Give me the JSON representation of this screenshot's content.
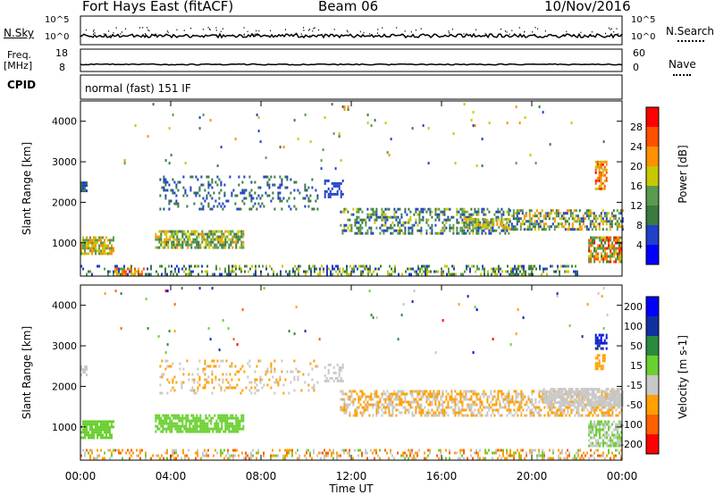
{
  "header": {
    "site": "Fort Hays East (fitACF)",
    "beam": "Beam 06",
    "date": "10/Nov/2016"
  },
  "nsky_panel": {
    "left_label": "N.Sky",
    "right_label": "N.Search",
    "top_tick": "10^5",
    "bottom_tick": "10^0"
  },
  "freq_panel": {
    "left_label_line1": "Freq.",
    "left_label_line2": "[MHz]",
    "left_ticks": [
      "18",
      "8"
    ],
    "right_label": "Nave",
    "right_ticks": [
      "60",
      "0"
    ]
  },
  "cpid": {
    "label": "CPID",
    "value": "normal (fast) 151 IF"
  },
  "colors": {
    "power": [
      "#0000ff",
      "#2040c8",
      "#3a7a40",
      "#5a9a50",
      "#c8c800",
      "#ff9000",
      "#ff5000",
      "#ff0000"
    ],
    "velocity": [
      "#ff0000",
      "#ff6000",
      "#ffa000",
      "#c8c8c8",
      "#6ad030",
      "#2a8a40",
      "#1030a0",
      "#0000ff"
    ]
  },
  "chart_data": [
    {
      "type": "heatmap",
      "name": "power",
      "xlabel": "",
      "ylabel": "Slant Range [km]",
      "xlim": [
        0,
        24
      ],
      "ylim": [
        180,
        4500
      ],
      "x_ticks": [],
      "y_ticks": [
        "1000",
        "2000",
        "3000",
        "4000"
      ],
      "colorbar": {
        "label": "Power [dB]",
        "range": [
          0,
          32
        ],
        "tick_values": [
          4,
          8,
          12,
          16,
          20,
          24,
          28
        ],
        "ticks": [
          "4",
          "8",
          "12",
          "16",
          "20",
          "24",
          "28"
        ]
      },
      "patches": [
        {
          "t0": 0.0,
          "t1": 0.3,
          "r0": 2250,
          "r1": 2500,
          "vmin": 4,
          "vmax": 12,
          "density": 0.9
        },
        {
          "t0": 0.0,
          "t1": 1.5,
          "r0": 700,
          "r1": 1100,
          "vmin": 12,
          "vmax": 24,
          "density": 0.75
        },
        {
          "t0": 0.0,
          "t1": 4.0,
          "r0": 190,
          "r1": 450,
          "vmin": 4,
          "vmax": 16,
          "density": 0.25
        },
        {
          "t0": 1.5,
          "t1": 2.8,
          "r0": 190,
          "r1": 350,
          "vmin": 16,
          "vmax": 28,
          "density": 0.5
        },
        {
          "t0": 3.3,
          "t1": 7.2,
          "r0": 850,
          "r1": 1250,
          "vmin": 8,
          "vmax": 22,
          "density": 0.7
        },
        {
          "t0": 3.5,
          "t1": 10.5,
          "r0": 1800,
          "r1": 2600,
          "vmin": 4,
          "vmax": 12,
          "density": 0.2
        },
        {
          "t0": 10.8,
          "t1": 11.6,
          "r0": 2100,
          "r1": 2550,
          "vmin": 4,
          "vmax": 8,
          "density": 0.45
        },
        {
          "t0": 11.5,
          "t1": 19.0,
          "r0": 1200,
          "r1": 1800,
          "vmin": 4,
          "vmax": 18,
          "density": 0.45
        },
        {
          "t0": 17.0,
          "t1": 19.0,
          "r0": 1350,
          "r1": 1600,
          "vmin": 12,
          "vmax": 22,
          "density": 0.5
        },
        {
          "t0": 19.0,
          "t1": 24.0,
          "r0": 1300,
          "r1": 1800,
          "vmin": 4,
          "vmax": 24,
          "density": 0.55
        },
        {
          "t0": 22.8,
          "t1": 23.3,
          "r0": 2300,
          "r1": 3000,
          "vmin": 16,
          "vmax": 30,
          "density": 0.7
        },
        {
          "t0": 22.5,
          "t1": 24.0,
          "r0": 500,
          "r1": 1100,
          "vmin": 8,
          "vmax": 30,
          "density": 0.7
        },
        {
          "t0": 4.0,
          "t1": 22.0,
          "r0": 190,
          "r1": 450,
          "vmin": 4,
          "vmax": 20,
          "density": 0.35
        },
        {
          "t0": 0.5,
          "t1": 23.5,
          "r0": 2800,
          "r1": 4400,
          "vmin": 4,
          "vmax": 24,
          "density": 0.01
        }
      ]
    },
    {
      "type": "heatmap",
      "name": "velocity",
      "xlabel": "Time UT",
      "ylabel": "Slant Range [km]",
      "xlim": [
        0,
        24
      ],
      "ylim": [
        180,
        4500
      ],
      "x_ticks": [
        "00:00",
        "04:00",
        "08:00",
        "12:00",
        "16:00",
        "20:00",
        "00:00"
      ],
      "y_ticks": [
        "1000",
        "2000",
        "3000",
        "4000"
      ],
      "colorbar": {
        "label": "Velocity [m s-1]",
        "ticks": [
          "-200",
          "-100",
          "-50",
          "-15",
          "15",
          "50",
          "100",
          "200"
        ]
      },
      "patches": [
        {
          "t0": 0.0,
          "t1": 0.3,
          "r0": 2250,
          "r1": 2500,
          "cmin": 3,
          "cmax": 3,
          "density": 0.6
        },
        {
          "t0": 0.0,
          "t1": 1.5,
          "r0": 700,
          "r1": 1100,
          "cmin": 4,
          "cmax": 4,
          "density": 0.8
        },
        {
          "t0": 0.0,
          "t1": 24.0,
          "r0": 190,
          "r1": 450,
          "cmin": 1,
          "cmax": 4,
          "density": 0.35
        },
        {
          "t0": 3.3,
          "t1": 7.2,
          "r0": 850,
          "r1": 1250,
          "cmin": 4,
          "cmax": 4,
          "density": 0.75
        },
        {
          "t0": 3.5,
          "t1": 10.5,
          "r0": 1800,
          "r1": 2600,
          "cmin": 2,
          "cmax": 3,
          "density": 0.18
        },
        {
          "t0": 10.8,
          "t1": 11.6,
          "r0": 2100,
          "r1": 2550,
          "cmin": 3,
          "cmax": 3,
          "density": 0.45
        },
        {
          "t0": 11.5,
          "t1": 24.0,
          "r0": 1250,
          "r1": 1900,
          "cmin": 2,
          "cmax": 3,
          "density": 0.55
        },
        {
          "t0": 20.5,
          "t1": 24.0,
          "r0": 1500,
          "r1": 1900,
          "cmin": 3,
          "cmax": 3,
          "density": 0.8
        },
        {
          "t0": 22.8,
          "t1": 23.3,
          "r0": 2900,
          "r1": 3250,
          "cmin": 6,
          "cmax": 7,
          "density": 0.7
        },
        {
          "t0": 22.8,
          "t1": 23.2,
          "r0": 2400,
          "r1": 2750,
          "cmin": 2,
          "cmax": 2,
          "density": 0.7
        },
        {
          "t0": 22.5,
          "t1": 24.0,
          "r0": 500,
          "r1": 1100,
          "cmin": 3,
          "cmax": 4,
          "density": 0.7
        },
        {
          "t0": 0.5,
          "t1": 23.5,
          "r0": 2800,
          "r1": 4400,
          "cmin": 0,
          "cmax": 7,
          "density": 0.01
        }
      ]
    }
  ]
}
